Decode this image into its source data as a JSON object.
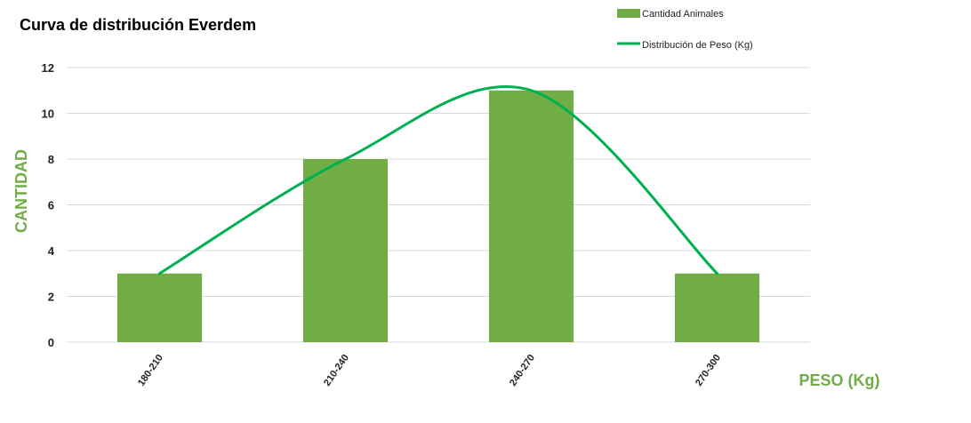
{
  "chart_data": {
    "type": "bar",
    "title": "Curva de distribución Everdem",
    "xlabel": "PESO (Kg)",
    "ylabel": "CANTIDAD",
    "categories": [
      "180-210",
      "210-240",
      "240-270",
      "270-300"
    ],
    "series": [
      {
        "name": "Cantidad Animales",
        "type": "bar",
        "values": [
          3,
          8,
          11,
          3
        ]
      },
      {
        "name": "Distribución de Peso (Kg)",
        "type": "line",
        "smooth": true,
        "values": [
          3,
          8,
          11,
          3
        ]
      }
    ],
    "ylim": [
      0,
      12
    ],
    "yticks": [
      0,
      2,
      4,
      6,
      8,
      10,
      12
    ],
    "grid": true,
    "legend": "top-right",
    "colors": {
      "bar": "#70AD47",
      "line": "#00B050",
      "axis_label": "#70AD47",
      "grid": "#D9D9D9"
    }
  }
}
